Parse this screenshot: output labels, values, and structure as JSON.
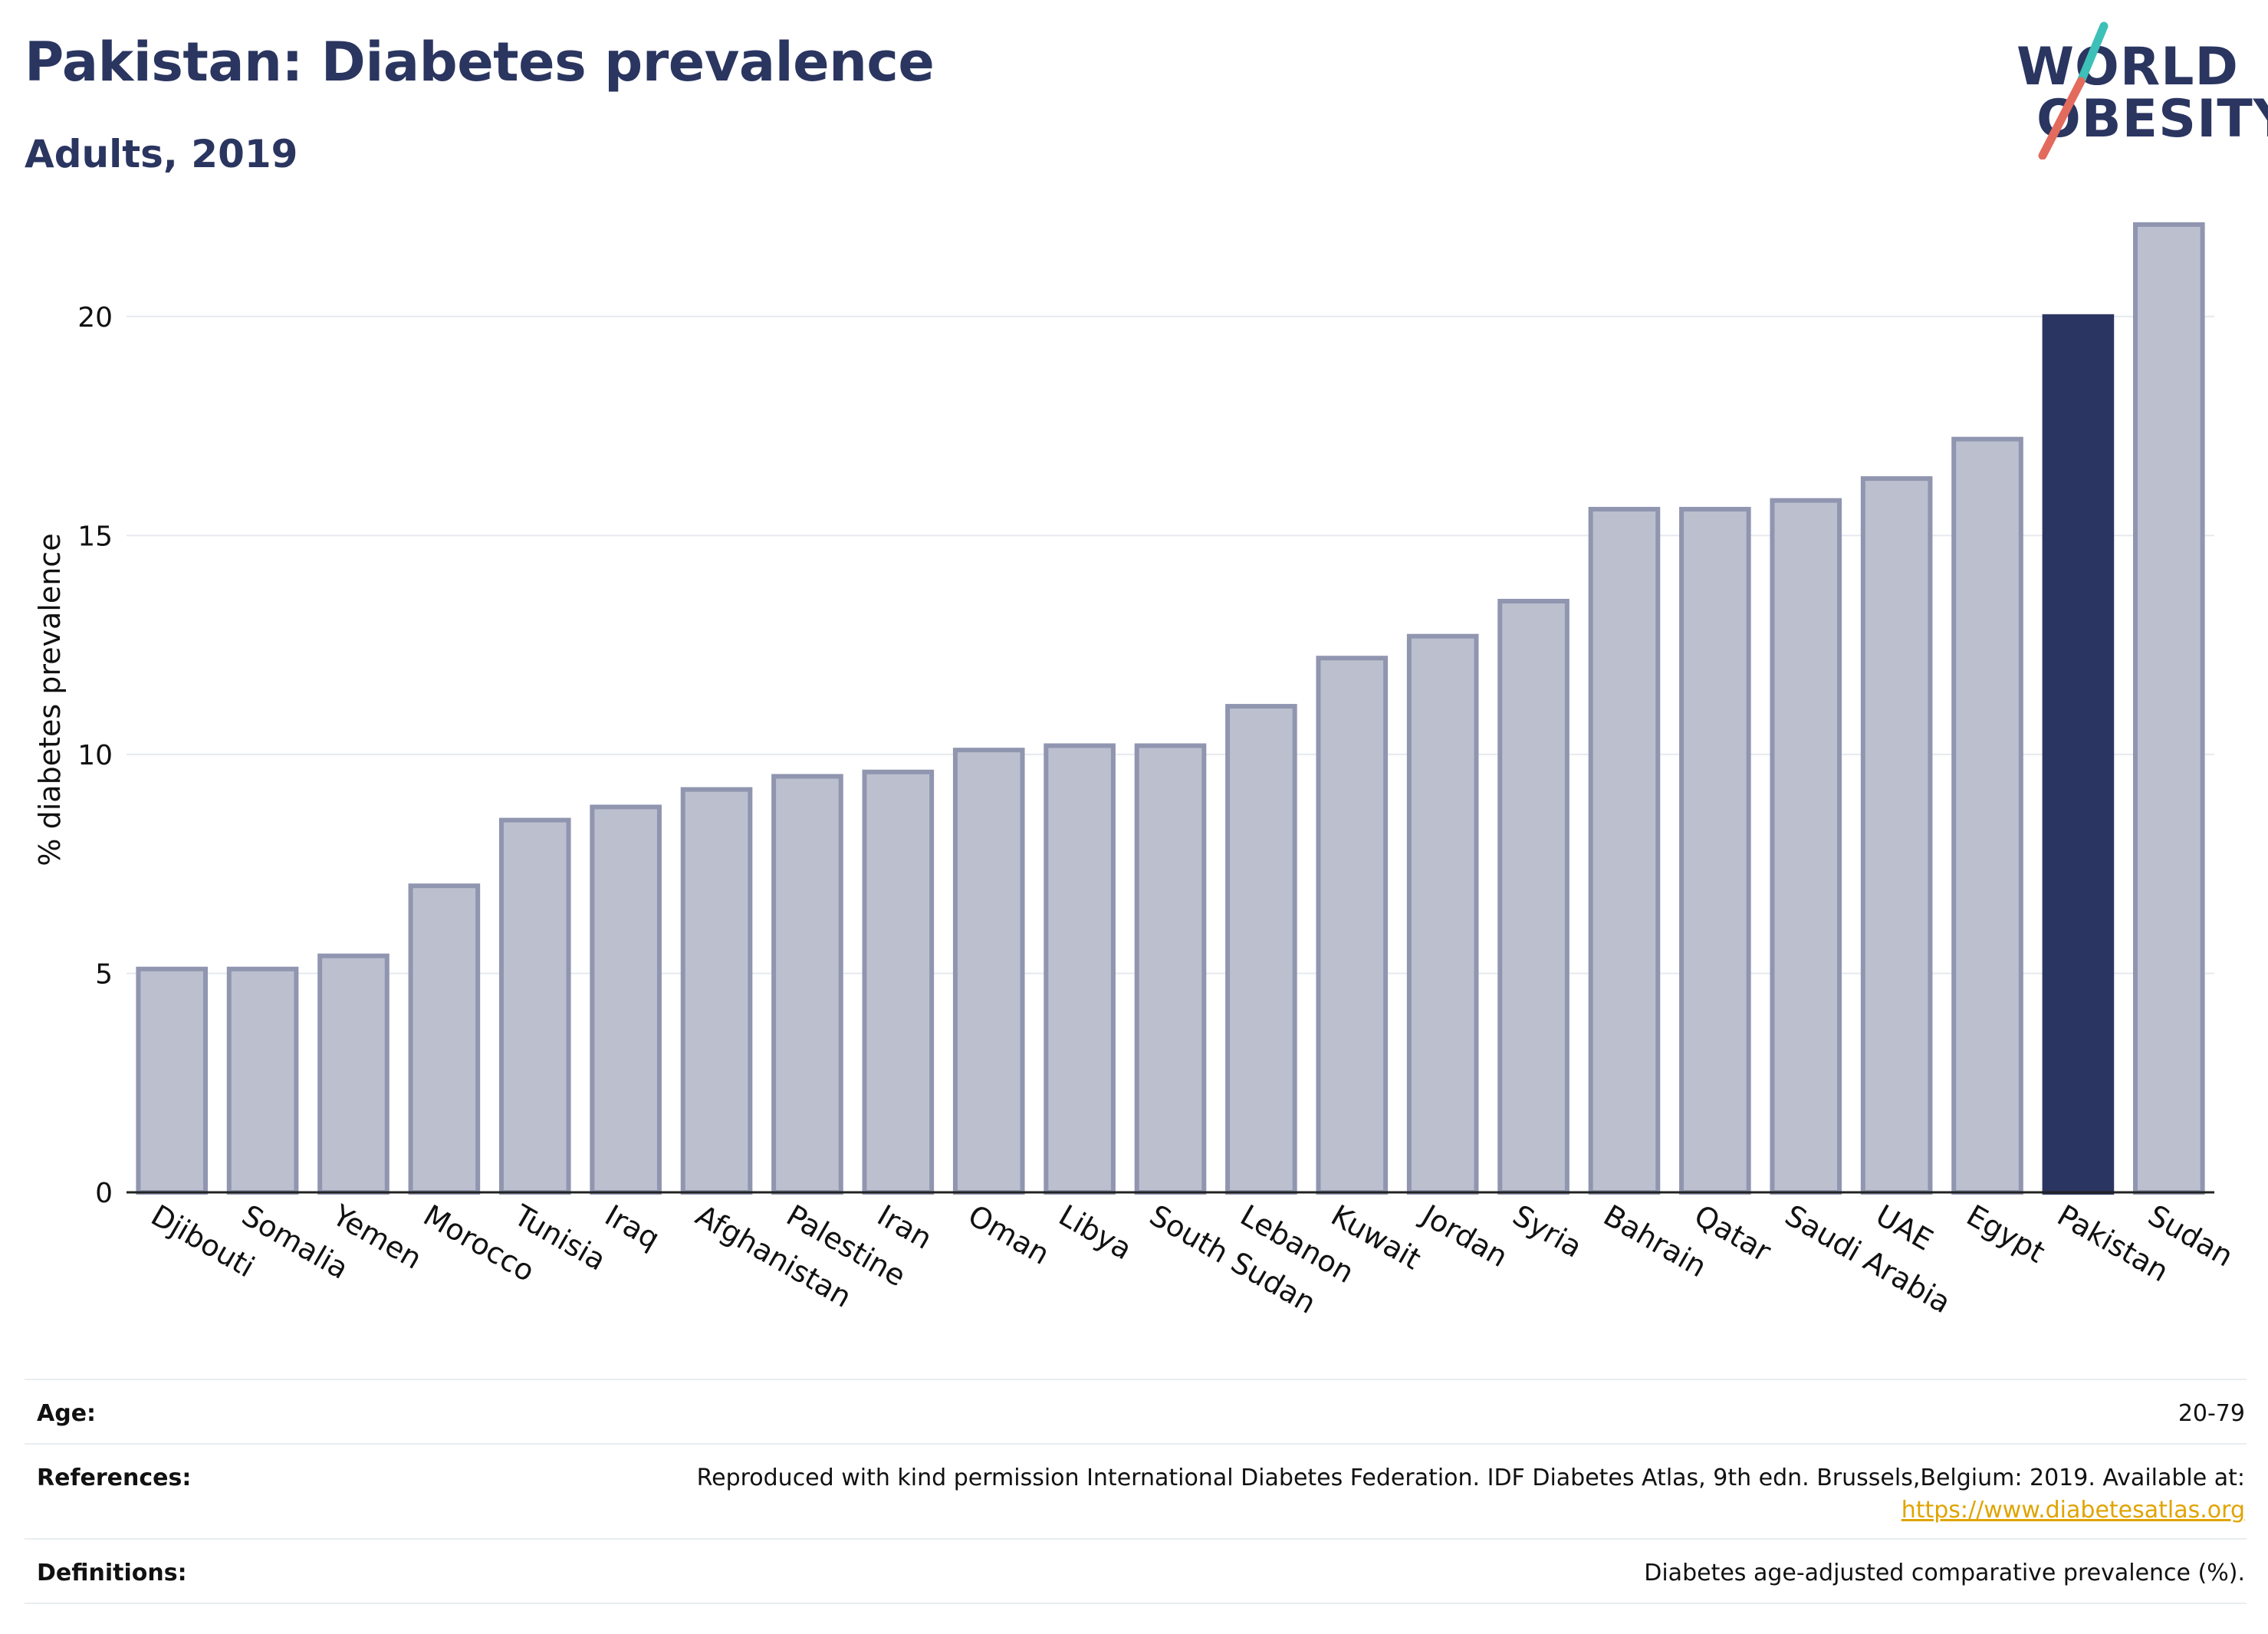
{
  "header": {
    "title": "Pakistan: Diabetes prevalence",
    "subtitle": "Adults, 2019"
  },
  "logo": {
    "line1": "WORLD",
    "line2": "OBESITY",
    "slash_colors": [
      "#3cc0b7",
      "#e36b5e"
    ]
  },
  "colors": {
    "highlight": "#2b3561",
    "bar_fill": "#bcc0ce",
    "bar_stroke": "#9095b0",
    "text_dark": "#2a3560",
    "link": "#e0a400"
  },
  "chart_data": {
    "type": "bar",
    "ylabel": "% diabetes prevalence",
    "xlabel": "",
    "ylim": [
      0,
      22.5
    ],
    "yticks": [
      0,
      5,
      10,
      15,
      20
    ],
    "grid": true,
    "highlight": "Pakistan",
    "categories": [
      "Djibouti",
      "Somalia",
      "Yemen",
      "Morocco",
      "Tunisia",
      "Iraq",
      "Afghanistan",
      "Palestine",
      "Iran",
      "Oman",
      "Libya",
      "South Sudan",
      "Lebanon",
      "Kuwait",
      "Jordan",
      "Syria",
      "Bahrain",
      "Qatar",
      "Saudi Arabia",
      "UAE",
      "Egypt",
      "Pakistan",
      "Sudan"
    ],
    "values": [
      5.1,
      5.1,
      5.4,
      7.0,
      8.5,
      8.8,
      9.2,
      9.5,
      9.6,
      10.1,
      10.2,
      10.2,
      11.1,
      12.2,
      12.7,
      13.5,
      15.6,
      15.6,
      15.8,
      16.3,
      17.2,
      20.0,
      22.1
    ]
  },
  "footer": {
    "age_label": "Age:",
    "age_value": "20-79",
    "references_label": "References:",
    "references_value": "Reproduced with kind permission International Diabetes Federation. IDF Diabetes Atlas, 9th edn. Brussels,Belgium: 2019. Available at:",
    "references_link": "https://www.diabetesatlas.org",
    "definitions_label": "Definitions:",
    "definitions_value": "Diabetes age-adjusted comparative prevalence (%)."
  }
}
